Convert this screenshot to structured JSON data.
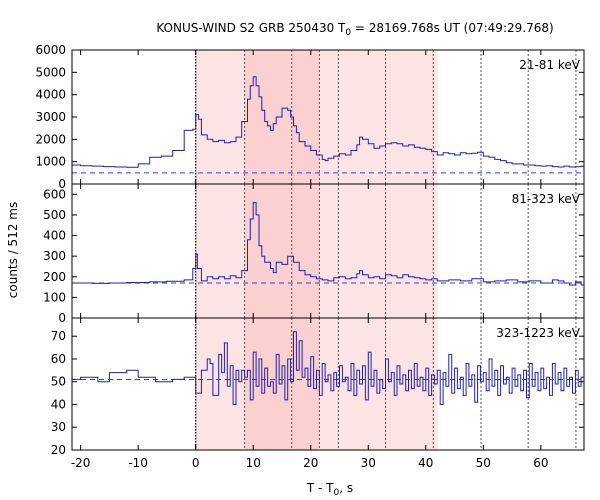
{
  "chart_data": {
    "type": "line",
    "title": "KONUS-WIND S2 GRB 250430 T0 = 28169.768s UT (07:49:29.768)",
    "title_parts": {
      "before": "KONUS-WIND S2 GRB 250430 T",
      "subscript": "0",
      "after": " = 28169.768s UT (07:49:29.768)"
    },
    "xlabel_parts": {
      "before": "T - T",
      "subscript": "0",
      "after": ", s"
    },
    "ylabel": "counts / 512 ms",
    "xlim": [
      -21.5,
      67.5
    ],
    "xticks": [
      -20,
      -10,
      0,
      10,
      20,
      30,
      40,
      50,
      60
    ],
    "shaded_intervals": [
      {
        "x0": 0.0,
        "x1": 42.0,
        "color": "#fde4e4"
      },
      {
        "x0": 8.5,
        "x1": 21.5,
        "color": "#fad0d0"
      }
    ],
    "solid_vline_x": 0.0,
    "dotted_vlines_x": [
      8.5,
      16.7,
      21.5,
      24.8,
      33.0,
      41.3,
      49.6,
      57.8,
      66.1
    ],
    "series": [
      {
        "name": "21-81 keV",
        "ylim": [
          0,
          6000
        ],
        "yticks": [
          0,
          1000,
          2000,
          3000,
          4000,
          5000,
          6000
        ],
        "background": 500,
        "points": [
          [
            -21.5,
            850
          ],
          [
            -20,
            820
          ],
          [
            -18,
            800
          ],
          [
            -16,
            780
          ],
          [
            -14,
            760
          ],
          [
            -12,
            750
          ],
          [
            -10,
            900
          ],
          [
            -8,
            1200
          ],
          [
            -6,
            1250
          ],
          [
            -4,
            1500
          ],
          [
            -2,
            2400
          ],
          [
            -0.5,
            2450
          ],
          [
            0,
            3100
          ],
          [
            0.5,
            2900
          ],
          [
            1,
            2200
          ],
          [
            2,
            2000
          ],
          [
            3,
            1900
          ],
          [
            4,
            1950
          ],
          [
            5,
            1850
          ],
          [
            6,
            1900
          ],
          [
            7,
            2100
          ],
          [
            8,
            2800
          ],
          [
            9,
            3800
          ],
          [
            9.5,
            4400
          ],
          [
            10,
            4800
          ],
          [
            10.5,
            4400
          ],
          [
            11,
            3900
          ],
          [
            11.5,
            3300
          ],
          [
            12,
            2800
          ],
          [
            12.5,
            2600
          ],
          [
            13,
            2400
          ],
          [
            13.5,
            2700
          ],
          [
            14,
            3000
          ],
          [
            15,
            3400
          ],
          [
            16,
            3300
          ],
          [
            16.5,
            3000
          ],
          [
            17,
            2600
          ],
          [
            17.5,
            2300
          ],
          [
            18,
            1900
          ],
          [
            19,
            1700
          ],
          [
            20,
            1500
          ],
          [
            21,
            1300
          ],
          [
            22,
            1100
          ],
          [
            22.5,
            1050
          ],
          [
            23,
            1150
          ],
          [
            24,
            1250
          ],
          [
            25,
            1350
          ],
          [
            26,
            1300
          ],
          [
            27,
            1500
          ],
          [
            28,
            1750
          ],
          [
            28.5,
            2100
          ],
          [
            29,
            2000
          ],
          [
            30,
            1800
          ],
          [
            31,
            1600
          ],
          [
            32,
            1700
          ],
          [
            33,
            1800
          ],
          [
            34,
            1850
          ],
          [
            35,
            1800
          ],
          [
            36,
            1700
          ],
          [
            37,
            1750
          ],
          [
            38,
            1650
          ],
          [
            39,
            1600
          ],
          [
            40,
            1550
          ],
          [
            41,
            1450
          ],
          [
            42,
            1300
          ],
          [
            43,
            1400
          ],
          [
            44,
            1350
          ],
          [
            45,
            1300
          ],
          [
            46,
            1400
          ],
          [
            47,
            1350
          ],
          [
            48,
            1380
          ],
          [
            49,
            1420
          ],
          [
            50,
            1250
          ],
          [
            51,
            1200
          ],
          [
            52,
            1100
          ],
          [
            53,
            1050
          ],
          [
            54,
            950
          ],
          [
            55,
            900
          ],
          [
            56,
            900
          ],
          [
            57,
            850
          ],
          [
            58,
            850
          ],
          [
            59,
            820
          ],
          [
            60,
            800
          ],
          [
            61,
            820
          ],
          [
            62,
            780
          ],
          [
            63,
            760
          ],
          [
            64,
            800
          ],
          [
            65,
            760
          ],
          [
            66,
            780
          ],
          [
            67,
            800
          ],
          [
            67.5,
            820
          ]
        ]
      },
      {
        "name": "81-323 keV",
        "ylim": [
          0,
          650
        ],
        "yticks": [
          0,
          100,
          200,
          300,
          400,
          500,
          600
        ],
        "background": 170,
        "points": [
          [
            -21.5,
            170
          ],
          [
            -18,
            168
          ],
          [
            -15,
            170
          ],
          [
            -12,
            172
          ],
          [
            -8,
            175
          ],
          [
            -5,
            178
          ],
          [
            -2,
            185
          ],
          [
            -0.5,
            240
          ],
          [
            0,
            310
          ],
          [
            0.3,
            240
          ],
          [
            1,
            180
          ],
          [
            2,
            200
          ],
          [
            3,
            190
          ],
          [
            4,
            200
          ],
          [
            5,
            190
          ],
          [
            6,
            205
          ],
          [
            7,
            195
          ],
          [
            8,
            230
          ],
          [
            9,
            380
          ],
          [
            9.5,
            480
          ],
          [
            10,
            560
          ],
          [
            10.5,
            500
          ],
          [
            11,
            350
          ],
          [
            11.5,
            300
          ],
          [
            12,
            270
          ],
          [
            13,
            240
          ],
          [
            13.5,
            220
          ],
          [
            14,
            270
          ],
          [
            15,
            260
          ],
          [
            16,
            300
          ],
          [
            17,
            270
          ],
          [
            18,
            230
          ],
          [
            19,
            210
          ],
          [
            20,
            200
          ],
          [
            21,
            190
          ],
          [
            22,
            185
          ],
          [
            23,
            180
          ],
          [
            24,
            195
          ],
          [
            25,
            200
          ],
          [
            26,
            190
          ],
          [
            27,
            195
          ],
          [
            28,
            215
          ],
          [
            28.5,
            230
          ],
          [
            29,
            210
          ],
          [
            30,
            195
          ],
          [
            31,
            200
          ],
          [
            32,
            190
          ],
          [
            33,
            210
          ],
          [
            34,
            205
          ],
          [
            35,
            195
          ],
          [
            36,
            210
          ],
          [
            37,
            200
          ],
          [
            38,
            195
          ],
          [
            39,
            190
          ],
          [
            40,
            185
          ],
          [
            41,
            190
          ],
          [
            42,
            180
          ],
          [
            44,
            185
          ],
          [
            46,
            180
          ],
          [
            48,
            190
          ],
          [
            50,
            175
          ],
          [
            52,
            180
          ],
          [
            54,
            185
          ],
          [
            56,
            175
          ],
          [
            58,
            180
          ],
          [
            60,
            170
          ],
          [
            62,
            185
          ],
          [
            63,
            180
          ],
          [
            64,
            170
          ],
          [
            65,
            160
          ],
          [
            66,
            175
          ],
          [
            67,
            160
          ],
          [
            67.5,
            150
          ]
        ]
      },
      {
        "name": "323-1223 keV",
        "ylim": [
          20,
          78
        ],
        "yticks": [
          20,
          30,
          40,
          50,
          60,
          70
        ],
        "background": 51,
        "points": [
          [
            -21.5,
            51
          ],
          [
            -20,
            52
          ],
          [
            -17,
            50
          ],
          [
            -15,
            54
          ],
          [
            -12,
            55
          ],
          [
            -10,
            52
          ],
          [
            -7,
            50
          ],
          [
            -4,
            51
          ],
          [
            -2,
            52
          ],
          [
            0,
            45
          ],
          [
            1,
            55
          ],
          [
            2,
            60
          ],
          [
            2.5,
            58
          ],
          [
            3,
            44
          ],
          [
            4,
            62
          ],
          [
            4.5,
            54
          ],
          [
            5,
            67
          ],
          [
            5.5,
            48
          ],
          [
            6,
            57
          ],
          [
            6.5,
            40
          ],
          [
            7,
            55
          ],
          [
            7.5,
            50
          ],
          [
            8,
            55
          ],
          [
            8.5,
            52
          ],
          [
            9,
            55
          ],
          [
            9.5,
            42
          ],
          [
            10,
            63
          ],
          [
            10.5,
            48
          ],
          [
            11,
            60
          ],
          [
            11.5,
            45
          ],
          [
            12,
            56
          ],
          [
            12.5,
            48
          ],
          [
            13,
            50
          ],
          [
            13.5,
            45
          ],
          [
            14,
            62
          ],
          [
            14.5,
            49
          ],
          [
            15,
            57
          ],
          [
            15.5,
            42
          ],
          [
            16,
            60
          ],
          [
            16.5,
            50
          ],
          [
            17,
            72
          ],
          [
            17.5,
            55
          ],
          [
            18,
            68
          ],
          [
            18.5,
            52
          ],
          [
            19,
            56
          ],
          [
            19.5,
            48
          ],
          [
            20,
            61
          ],
          [
            20.5,
            47
          ],
          [
            21,
            55
          ],
          [
            21.5,
            44
          ],
          [
            22,
            58
          ],
          [
            22.5,
            50
          ],
          [
            23,
            53
          ],
          [
            23.5,
            46
          ],
          [
            24,
            54
          ],
          [
            24.5,
            48
          ],
          [
            25,
            57
          ],
          [
            25.5,
            50
          ],
          [
            26,
            52
          ],
          [
            26.5,
            46
          ],
          [
            27,
            58
          ],
          [
            27.5,
            44
          ],
          [
            28,
            55
          ],
          [
            28.5,
            49
          ],
          [
            29,
            57
          ],
          [
            29.5,
            42
          ],
          [
            30,
            63
          ],
          [
            30.5,
            48
          ],
          [
            31,
            55
          ],
          [
            31.5,
            45
          ],
          [
            32,
            51
          ],
          [
            32.5,
            47
          ],
          [
            33,
            60
          ],
          [
            33.5,
            50
          ],
          [
            34,
            54
          ],
          [
            34.5,
            44
          ],
          [
            35,
            57
          ],
          [
            35.5,
            49
          ],
          [
            36,
            53
          ],
          [
            36.5,
            46
          ],
          [
            37,
            55
          ],
          [
            37.5,
            47
          ],
          [
            38,
            58
          ],
          [
            38.5,
            48
          ],
          [
            39,
            52
          ],
          [
            39.5,
            46
          ],
          [
            40,
            56
          ],
          [
            40.5,
            44
          ],
          [
            41,
            53
          ],
          [
            41.5,
            49
          ],
          [
            42,
            55
          ],
          [
            42.5,
            40
          ],
          [
            43,
            54
          ],
          [
            43.5,
            48
          ],
          [
            44,
            62
          ],
          [
            44.5,
            45
          ],
          [
            45,
            56
          ],
          [
            45.5,
            47
          ],
          [
            46,
            52
          ],
          [
            46.5,
            44
          ],
          [
            47,
            58
          ],
          [
            47.5,
            48
          ],
          [
            48,
            53
          ],
          [
            48.5,
            41
          ],
          [
            49,
            57
          ],
          [
            49.5,
            50
          ],
          [
            50,
            54
          ],
          [
            50.5,
            46
          ],
          [
            51,
            60
          ],
          [
            51.5,
            48
          ],
          [
            52,
            55
          ],
          [
            52.5,
            44
          ],
          [
            53,
            57
          ],
          [
            53.5,
            49
          ],
          [
            54,
            52
          ],
          [
            54.5,
            45
          ],
          [
            55,
            56
          ],
          [
            55.5,
            48
          ],
          [
            56,
            53
          ],
          [
            56.5,
            46
          ],
          [
            57,
            55
          ],
          [
            57.5,
            43
          ],
          [
            58,
            58
          ],
          [
            58.5,
            48
          ],
          [
            59,
            54
          ],
          [
            59.5,
            46
          ],
          [
            60,
            56
          ],
          [
            60.5,
            47
          ],
          [
            61,
            52
          ],
          [
            61.5,
            44
          ],
          [
            62,
            58
          ],
          [
            62.5,
            49
          ],
          [
            63,
            54
          ],
          [
            63.5,
            46
          ],
          [
            64,
            56
          ],
          [
            64.5,
            48
          ],
          [
            65,
            52
          ],
          [
            65.5,
            45
          ],
          [
            66,
            55
          ],
          [
            66.5,
            48
          ],
          [
            67,
            52
          ],
          [
            67.5,
            50
          ]
        ]
      }
    ]
  }
}
